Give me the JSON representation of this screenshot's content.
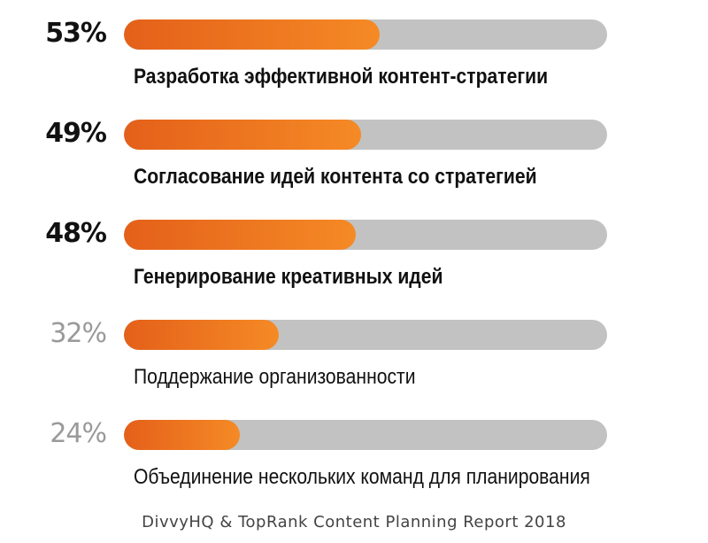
{
  "chart_data": {
    "type": "bar",
    "orientation": "horizontal",
    "xlim": [
      0,
      100
    ],
    "unit": "%",
    "categories": [
      "Разработка эффективной контент-стратегии",
      "Согласование идей контента со стратегией",
      "Генерирование креативных идей",
      "Поддержание организованности",
      "Объединение нескольких команд для планирования"
    ],
    "values": [
      53,
      49,
      48,
      32,
      24
    ],
    "value_labels": [
      "53%",
      "49%",
      "48%",
      "32%",
      "24%"
    ],
    "emphasis": [
      "bold",
      "bold",
      "bold",
      "light",
      "light"
    ],
    "source": "DivvyHQ & TopRank Content Planning Report 2018"
  },
  "colors": {
    "fill_start": "#e4601a",
    "fill_end": "#f58a25",
    "track": "#c2c2c2",
    "text_bold": "#111111",
    "text_light": "#9a9a9a"
  }
}
